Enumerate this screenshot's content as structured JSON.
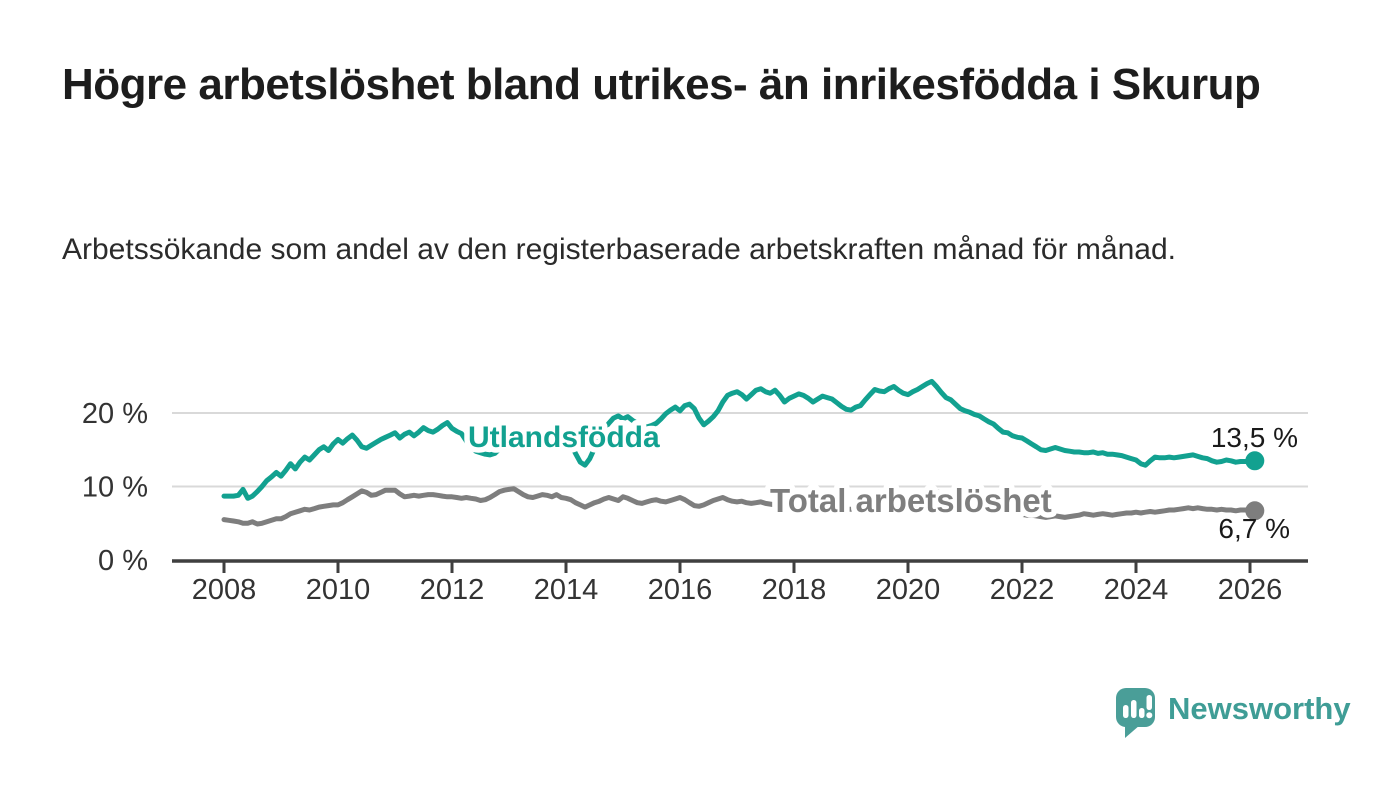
{
  "page": {
    "title": "Högre arbetslöshet bland utrikes- än inrikesfödda i Skurup",
    "subtitle": "Arbetssökande som andel av den registerbaserade arbetskraften månad för månad."
  },
  "branding": {
    "logo_text": "Newsworthy",
    "logo_text_color": "#3f9d96",
    "logo_icon": "bar-chart-speech-bubble-icon",
    "logo_icon_color": "#4a9e98"
  },
  "chart_data": {
    "type": "line",
    "title": "",
    "xlabel": "",
    "ylabel": "",
    "x_unit": "month",
    "x_start": "2008-01",
    "x_end": "2026-02",
    "x_ticks": [
      2008,
      2010,
      2012,
      2014,
      2016,
      2018,
      2020,
      2022,
      2024,
      2026
    ],
    "y_ticks": [
      {
        "label": "0 %",
        "value": 0
      },
      {
        "label": "10 %",
        "value": 10
      },
      {
        "label": "20 %",
        "value": 20
      }
    ],
    "ylim": [
      0,
      25
    ],
    "grid": "horizontal",
    "legend_position": "inline-labels",
    "axis_color": "#3f3f3f",
    "grid_color": "#d9d9d9",
    "series": [
      {
        "name": "Utlandsfödda",
        "color": "#12a190",
        "end_label": "13,5 %",
        "end_value": 13.5,
        "values": [
          8.7,
          8.7,
          8.7,
          8.8,
          9.6,
          8.4,
          8.7,
          9.3,
          10.0,
          10.8,
          11.3,
          11.9,
          11.4,
          12.2,
          13.1,
          12.4,
          13.3,
          14.0,
          13.6,
          14.3,
          15.0,
          15.4,
          14.9,
          15.8,
          16.4,
          15.9,
          16.5,
          17.0,
          16.3,
          15.4,
          15.2,
          15.6,
          16.0,
          16.4,
          16.7,
          17.0,
          17.3,
          16.6,
          17.1,
          17.4,
          16.9,
          17.4,
          18.0,
          17.6,
          17.4,
          17.8,
          18.3,
          18.7,
          17.9,
          17.5,
          17.2,
          16.2,
          15.4,
          14.8,
          14.6,
          14.4,
          14.3,
          14.5,
          15.1,
          15.9,
          16.5,
          16.9,
          16.6,
          16.5,
          16.2,
          16.0,
          15.6,
          15.2,
          15.5,
          15.8,
          16.0,
          16.2,
          16.5,
          15.8,
          14.5,
          13.3,
          12.9,
          13.8,
          15.2,
          16.5,
          17.7,
          18.6,
          19.3,
          19.6,
          19.2,
          19.5,
          19.0,
          18.6,
          18.3,
          18.1,
          18.3,
          18.6,
          19.2,
          19.9,
          20.4,
          20.8,
          20.3,
          21.0,
          21.2,
          20.6,
          19.3,
          18.4,
          18.9,
          19.5,
          20.3,
          21.5,
          22.4,
          22.7,
          22.9,
          22.5,
          21.9,
          22.5,
          23.1,
          23.3,
          22.9,
          22.7,
          23.1,
          22.4,
          21.5,
          22.0,
          22.3,
          22.6,
          22.4,
          22.0,
          21.5,
          21.9,
          22.3,
          22.1,
          21.9,
          21.4,
          20.9,
          20.5,
          20.4,
          20.8,
          21.0,
          21.8,
          22.5,
          23.2,
          23.0,
          22.9,
          23.3,
          23.6,
          23.1,
          22.7,
          22.5,
          22.9,
          23.2,
          23.6,
          24.0,
          24.3,
          23.6,
          22.8,
          22.1,
          21.8,
          21.2,
          20.6,
          20.3,
          20.1,
          19.8,
          19.6,
          19.2,
          18.8,
          18.5,
          17.9,
          17.4,
          17.3,
          16.9,
          16.7,
          16.6,
          16.2,
          15.8,
          15.4,
          15.0,
          14.9,
          15.1,
          15.3,
          15.1,
          14.9,
          14.8,
          14.7,
          14.7,
          14.6,
          14.6,
          14.7,
          14.5,
          14.6,
          14.4,
          14.4,
          14.3,
          14.2,
          14.0,
          13.8,
          13.6,
          13.1,
          12.9,
          13.5,
          14.0,
          13.9,
          13.9,
          14.0,
          13.9,
          14.0,
          14.1,
          14.2,
          14.3,
          14.1,
          13.9,
          13.8,
          13.5,
          13.3,
          13.4,
          13.6,
          13.5,
          13.3,
          13.4,
          13.4,
          13.4,
          13.5
        ]
      },
      {
        "name": "Total arbetslöshet",
        "color": "#7e7e7e",
        "end_label": "6,7 %",
        "end_value": 6.7,
        "values": [
          5.5,
          5.4,
          5.3,
          5.2,
          5.0,
          5.0,
          5.2,
          4.9,
          5.0,
          5.2,
          5.4,
          5.6,
          5.6,
          5.9,
          6.3,
          6.5,
          6.7,
          6.9,
          6.8,
          7.0,
          7.2,
          7.3,
          7.4,
          7.5,
          7.5,
          7.8,
          8.2,
          8.6,
          9.0,
          9.4,
          9.2,
          8.8,
          8.9,
          9.2,
          9.5,
          9.5,
          9.5,
          9.0,
          8.6,
          8.7,
          8.8,
          8.7,
          8.8,
          8.9,
          8.9,
          8.8,
          8.7,
          8.6,
          8.6,
          8.5,
          8.4,
          8.5,
          8.4,
          8.3,
          8.1,
          8.2,
          8.5,
          8.9,
          9.3,
          9.5,
          9.6,
          9.7,
          9.3,
          8.9,
          8.6,
          8.5,
          8.7,
          8.9,
          8.8,
          8.6,
          8.9,
          8.5,
          8.4,
          8.2,
          7.8,
          7.5,
          7.2,
          7.5,
          7.8,
          8.0,
          8.3,
          8.5,
          8.3,
          8.1,
          8.6,
          8.4,
          8.1,
          7.8,
          7.7,
          7.9,
          8.1,
          8.2,
          8.0,
          7.9,
          8.1,
          8.3,
          8.5,
          8.2,
          7.8,
          7.4,
          7.3,
          7.5,
          7.8,
          8.1,
          8.3,
          8.5,
          8.2,
          8.0,
          7.9,
          8.0,
          7.8,
          7.7,
          7.8,
          7.9,
          7.7,
          7.6,
          7.5,
          7.4,
          7.3,
          7.2,
          7.2,
          7.1,
          7.0,
          7.0,
          6.9,
          7.0,
          7.1,
          7.0,
          6.9,
          6.9,
          6.8,
          6.9,
          6.9,
          7.0,
          7.0,
          6.9,
          7.0,
          7.1,
          7.2,
          7.1,
          7.1,
          7.2,
          7.3,
          7.5,
          7.7,
          7.9,
          8.4,
          8.9,
          9.2,
          9.4,
          9.3,
          9.1,
          8.9,
          8.7,
          8.5,
          8.3,
          8.2,
          8.0,
          7.8,
          7.6,
          7.4,
          7.2,
          7.0,
          6.8,
          6.7,
          6.6,
          6.4,
          6.3,
          6.2,
          6.1,
          6.1,
          6.0,
          5.9,
          5.8,
          5.9,
          6.0,
          5.9,
          5.8,
          5.9,
          6.0,
          6.1,
          6.3,
          6.2,
          6.1,
          6.2,
          6.3,
          6.2,
          6.1,
          6.2,
          6.3,
          6.4,
          6.4,
          6.5,
          6.4,
          6.5,
          6.6,
          6.5,
          6.6,
          6.7,
          6.8,
          6.8,
          6.9,
          7.0,
          7.1,
          7.0,
          7.1,
          7.0,
          6.9,
          6.9,
          6.8,
          6.9,
          6.8,
          6.8,
          6.7,
          6.8,
          6.8,
          6.7,
          6.7
        ]
      }
    ]
  }
}
